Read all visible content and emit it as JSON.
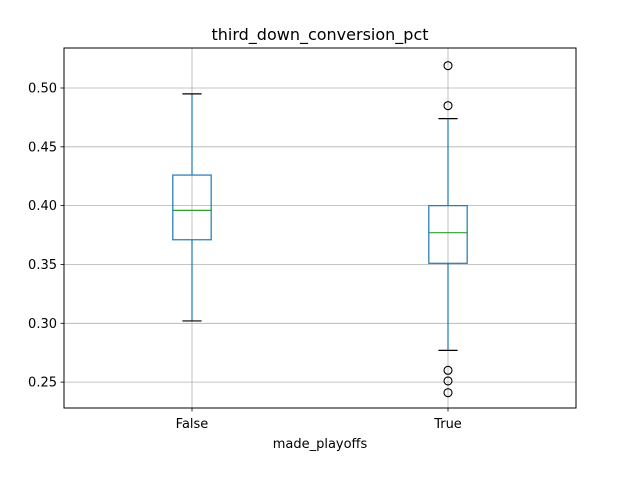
{
  "chart_data": {
    "type": "box",
    "title": "third_down_conversion_pct",
    "xlabel": "made_playoffs",
    "ylabel": "",
    "ylim": [
      0.228,
      0.534
    ],
    "y_ticks": [
      "0.25",
      "0.30",
      "0.35",
      "0.40",
      "0.45",
      "0.50"
    ],
    "grid": true,
    "colors": {
      "box": "#1f77b4",
      "median": "#2ca02c",
      "whisker": "#1f77b4",
      "cap": "#000000",
      "flier": "#000000",
      "grid": "#b0b0b0"
    },
    "categories": [
      "False",
      "True"
    ],
    "boxes": [
      {
        "category": "False",
        "whisker_low": 0.302,
        "q1": 0.371,
        "median": 0.396,
        "q3": 0.426,
        "whisker_high": 0.495,
        "fliers": []
      },
      {
        "category": "True",
        "whisker_low": 0.277,
        "q1": 0.351,
        "median": 0.377,
        "q3": 0.4,
        "whisker_high": 0.474,
        "fliers": [
          0.519,
          0.485,
          0.26,
          0.251,
          0.241
        ]
      }
    ]
  }
}
